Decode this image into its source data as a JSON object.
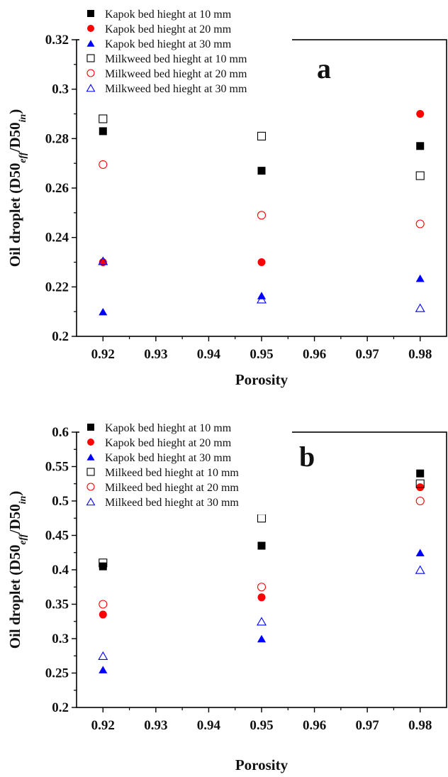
{
  "chart_data": [
    {
      "type": "scatter",
      "panel_label": "a",
      "xlabel": "Porosity",
      "ylabel": "Oil droplet (D50eff/D50in)",
      "xlim": [
        0.915,
        0.985
      ],
      "ylim": [
        0.2,
        0.32
      ],
      "xticks": [
        0.92,
        0.93,
        0.94,
        0.95,
        0.96,
        0.97,
        0.98
      ],
      "xtick_labels": [
        "0.92",
        "0.93",
        "0.94",
        "0.95",
        "0.96",
        "0.97",
        "0.98"
      ],
      "yticks": [
        0.2,
        0.22,
        0.24,
        0.26,
        0.28,
        0.3,
        0.32
      ],
      "ytick_labels": [
        "0.2",
        "0.22",
        "0.24",
        "0.26",
        "0.28",
        "0.3",
        "0.32"
      ],
      "legend_position": "top-left",
      "series": [
        {
          "name": "Kapok bed hieght at 10 mm",
          "marker": "square",
          "filled": true,
          "color": "#000000",
          "x": [
            0.92,
            0.95,
            0.98
          ],
          "y": [
            0.283,
            0.267,
            0.277
          ]
        },
        {
          "name": "Kapok bed hieght at 20 mm",
          "marker": "circle",
          "filled": true,
          "color": "#ff0000",
          "x": [
            0.92,
            0.95,
            0.98
          ],
          "y": [
            0.23,
            0.23,
            0.29
          ]
        },
        {
          "name": "Kapok bed hieght at 30 mm",
          "marker": "triangle",
          "filled": true,
          "color": "#0000ff",
          "x": [
            0.92,
            0.95,
            0.98
          ],
          "y": [
            0.21,
            0.2165,
            0.2235
          ]
        },
        {
          "name": "Milkweed bed hieght at 10 mm",
          "marker": "square",
          "filled": false,
          "color": "#000000",
          "x": [
            0.92,
            0.95,
            0.98
          ],
          "y": [
            0.288,
            0.281,
            0.265
          ]
        },
        {
          "name": "Milkweed bed hieght at 20 mm",
          "marker": "circle",
          "filled": false,
          "color": "#ff0000",
          "x": [
            0.92,
            0.95,
            0.98
          ],
          "y": [
            0.2695,
            0.249,
            0.2455
          ]
        },
        {
          "name": "Milkweed bed hieght at 30 mm",
          "marker": "triangle",
          "filled": false,
          "color": "#0000ff",
          "x": [
            0.92,
            0.95,
            0.98
          ],
          "y": [
            0.2305,
            0.215,
            0.2115
          ]
        }
      ]
    },
    {
      "type": "scatter",
      "panel_label": "b",
      "xlabel": "Porosity",
      "ylabel": "Oil droplet (D50eff/D50in)",
      "xlim": [
        0.915,
        0.985
      ],
      "ylim": [
        0.2,
        0.6
      ],
      "xticks": [
        0.92,
        0.93,
        0.94,
        0.95,
        0.96,
        0.97,
        0.98
      ],
      "xtick_labels": [
        "0.92",
        "0.93",
        "0.94",
        "0.95",
        "0.96",
        "0.97",
        "0.98"
      ],
      "yticks": [
        0.2,
        0.25,
        0.3,
        0.35,
        0.4,
        0.45,
        0.5,
        0.55,
        0.6
      ],
      "ytick_labels": [
        "0.2",
        "0.25",
        "0.3",
        "0.35",
        "0.4",
        "0.45",
        "0.5",
        "0.55",
        "0.6"
      ],
      "legend_position": "top-left",
      "series": [
        {
          "name": "Kapok bed hieght at 10 mm",
          "marker": "square",
          "filled": true,
          "color": "#000000",
          "x": [
            0.92,
            0.95,
            0.98
          ],
          "y": [
            0.405,
            0.435,
            0.54
          ]
        },
        {
          "name": "Kapok bed hieght at 20 mm",
          "marker": "circle",
          "filled": true,
          "color": "#ff0000",
          "x": [
            0.92,
            0.95,
            0.98
          ],
          "y": [
            0.335,
            0.36,
            0.52
          ]
        },
        {
          "name": "Kapok bed hieght at 30 mm",
          "marker": "triangle",
          "filled": true,
          "color": "#0000ff",
          "x": [
            0.92,
            0.95,
            0.98
          ],
          "y": [
            0.255,
            0.3,
            0.425
          ]
        },
        {
          "name": "Milkeed bed hieght at 10 mm",
          "marker": "square",
          "filled": false,
          "color": "#000000",
          "x": [
            0.92,
            0.95,
            0.98
          ],
          "y": [
            0.41,
            0.475,
            0.525
          ]
        },
        {
          "name": "Milkeed bed hieght at 20 mm",
          "marker": "circle",
          "filled": false,
          "color": "#ff0000",
          "x": [
            0.92,
            0.95,
            0.98
          ],
          "y": [
            0.35,
            0.375,
            0.5
          ]
        },
        {
          "name": "Milkeed bed hieght at 30 mm",
          "marker": "triangle",
          "filled": false,
          "color": "#0000ff",
          "x": [
            0.92,
            0.95,
            0.98
          ],
          "y": [
            0.275,
            0.325,
            0.4
          ]
        }
      ]
    }
  ]
}
